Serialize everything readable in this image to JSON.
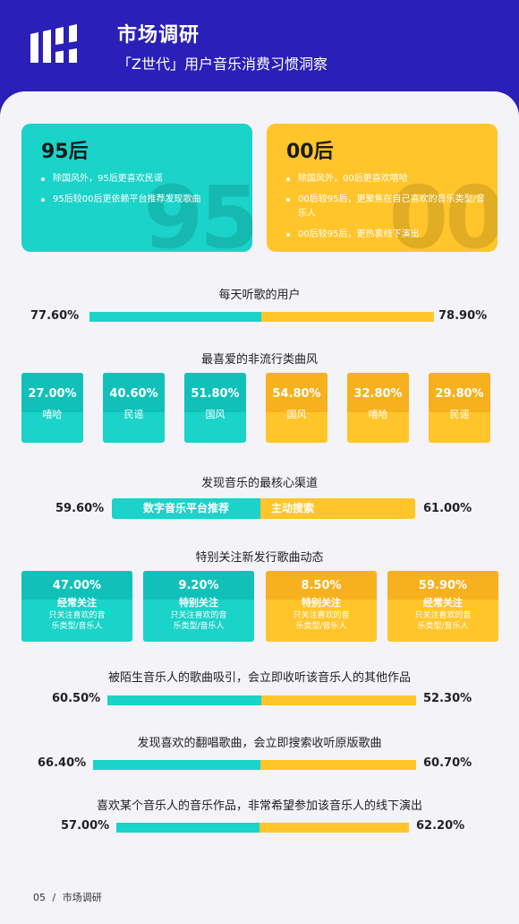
{
  "header": {
    "title": "市场调研",
    "subtitle": "「Z世代」用户音乐消费习惯洞察"
  },
  "colors": {
    "accent_blue": "#2a1fb8",
    "teal": "#1ad3c9",
    "yellow": "#ffc52a",
    "background": "#f3f3f8"
  },
  "cards": [
    {
      "title": "95后",
      "watermark": "95",
      "points": [
        "除国风外，95后更喜欢民谣",
        "95后较00后更依赖平台推荐发现歌曲"
      ]
    },
    {
      "title": "00后",
      "watermark": "00",
      "points": [
        "除国风外，00后更喜欢嘻哈",
        "00后较95后，更聚焦在自己喜欢的音乐类型/音乐人",
        "00后较95后，更热衷线下演出"
      ]
    }
  ],
  "daily": {
    "title": "每天听歌的用户",
    "left_value": "77.60%",
    "right_value": "78.90%",
    "left_fraction": 0.776,
    "right_fraction": 0.789
  },
  "genres": {
    "title": "最喜爱的非流行类曲风",
    "items": [
      {
        "value": "27.00%",
        "label": "嘻哈",
        "group": "95后"
      },
      {
        "value": "40.60%",
        "label": "民谣",
        "group": "95后"
      },
      {
        "value": "51.80%",
        "label": "国风",
        "group": "95后"
      },
      {
        "value": "54.80%",
        "label": "国风",
        "group": "00后"
      },
      {
        "value": "32.80%",
        "label": "嘻哈",
        "group": "00后"
      },
      {
        "value": "29.80%",
        "label": "民谣",
        "group": "00后"
      }
    ]
  },
  "channel": {
    "title": "发现音乐的最核心渠道",
    "left_value": "59.60%",
    "left_label": "数字音乐平台推荐",
    "right_value": "61.00%",
    "right_label": "主动搜索",
    "left_fraction": 0.596,
    "right_fraction": 0.61
  },
  "follow": {
    "title": "特别关注新发行歌曲动态",
    "items": [
      {
        "value": "47.00%",
        "freq": "经常关注",
        "desc": "只关注喜欢的音乐类型/音乐人"
      },
      {
        "value": "9.20%",
        "freq": "特别关注",
        "desc": "只关注喜欢的音乐类型/音乐人"
      },
      {
        "value": "8.50%",
        "freq": "特别关注",
        "desc": "只关注喜欢的音乐类型/音乐人"
      },
      {
        "value": "59.90%",
        "freq": "经常关注",
        "desc": "只关注喜欢的音乐类型/音乐人"
      }
    ]
  },
  "stats": [
    {
      "title": "被陌生音乐人的歌曲吸引，会立即收听该音乐人的其他作品",
      "left_value": "60.50%",
      "right_value": "52.30%",
      "left_fraction": 0.605,
      "right_fraction": 0.523
    },
    {
      "title": "发现喜欢的翻唱歌曲，会立即搜索收听原版歌曲",
      "left_value": "66.40%",
      "right_value": "60.70%",
      "left_fraction": 0.664,
      "right_fraction": 0.607
    },
    {
      "title": "喜欢某个音乐人的音乐作品，非常希望参加该音乐人的线下演出",
      "left_value": "57.00%",
      "right_value": "62.20%",
      "left_fraction": 0.57,
      "right_fraction": 0.622
    }
  ],
  "footer": {
    "page": "05",
    "separator": "/",
    "section": "市场调研"
  }
}
